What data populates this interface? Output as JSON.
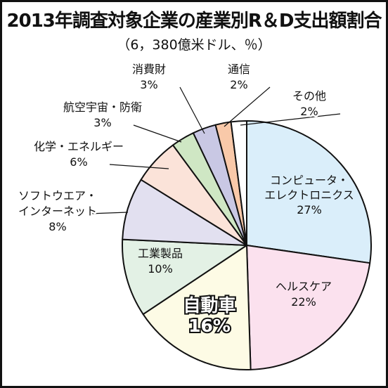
{
  "chart_data": {
    "type": "pie",
    "title": "2013年調査対象企業の産業別R＆D支出額割合",
    "subtitle": "（6，380億米ドル、％）",
    "unit": "%",
    "slices": [
      {
        "label_lines": [
          "コンピュータ・",
          "エレクトロニクス"
        ],
        "value": 27,
        "value_text": "27%",
        "color": "#daeefa"
      },
      {
        "label_lines": [
          "ヘルスケア"
        ],
        "value": 22,
        "value_text": "22%",
        "color": "#fbe1ee"
      },
      {
        "label_lines": [
          "自動車"
        ],
        "value": 16,
        "value_text": "16%",
        "color": "#fdfbe5",
        "emphasis": true
      },
      {
        "label_lines": [
          "工業製品"
        ],
        "value": 10,
        "value_text": "10%",
        "color": "#e3f1e5"
      },
      {
        "label_lines": [
          "ソフトウエア・",
          "インターネット"
        ],
        "value": 8,
        "value_text": "8%",
        "color": "#e2e0f0"
      },
      {
        "label_lines": [
          "化学・エネルギー"
        ],
        "value": 6,
        "value_text": "6%",
        "color": "#fbe3d9"
      },
      {
        "label_lines": [
          "航空宇宙・防衛"
        ],
        "value": 3,
        "value_text": "3%",
        "color": "#cfe7c4"
      },
      {
        "label_lines": [
          "消費財"
        ],
        "value": 3,
        "value_text": "3%",
        "color": "#c9c8e4"
      },
      {
        "label_lines": [
          "通信"
        ],
        "value": 2,
        "value_text": "2%",
        "color": "#f9c9a9"
      },
      {
        "label_lines": [
          "その他"
        ],
        "value": 2,
        "value_text": "2%",
        "color": "#ffffff"
      }
    ]
  }
}
